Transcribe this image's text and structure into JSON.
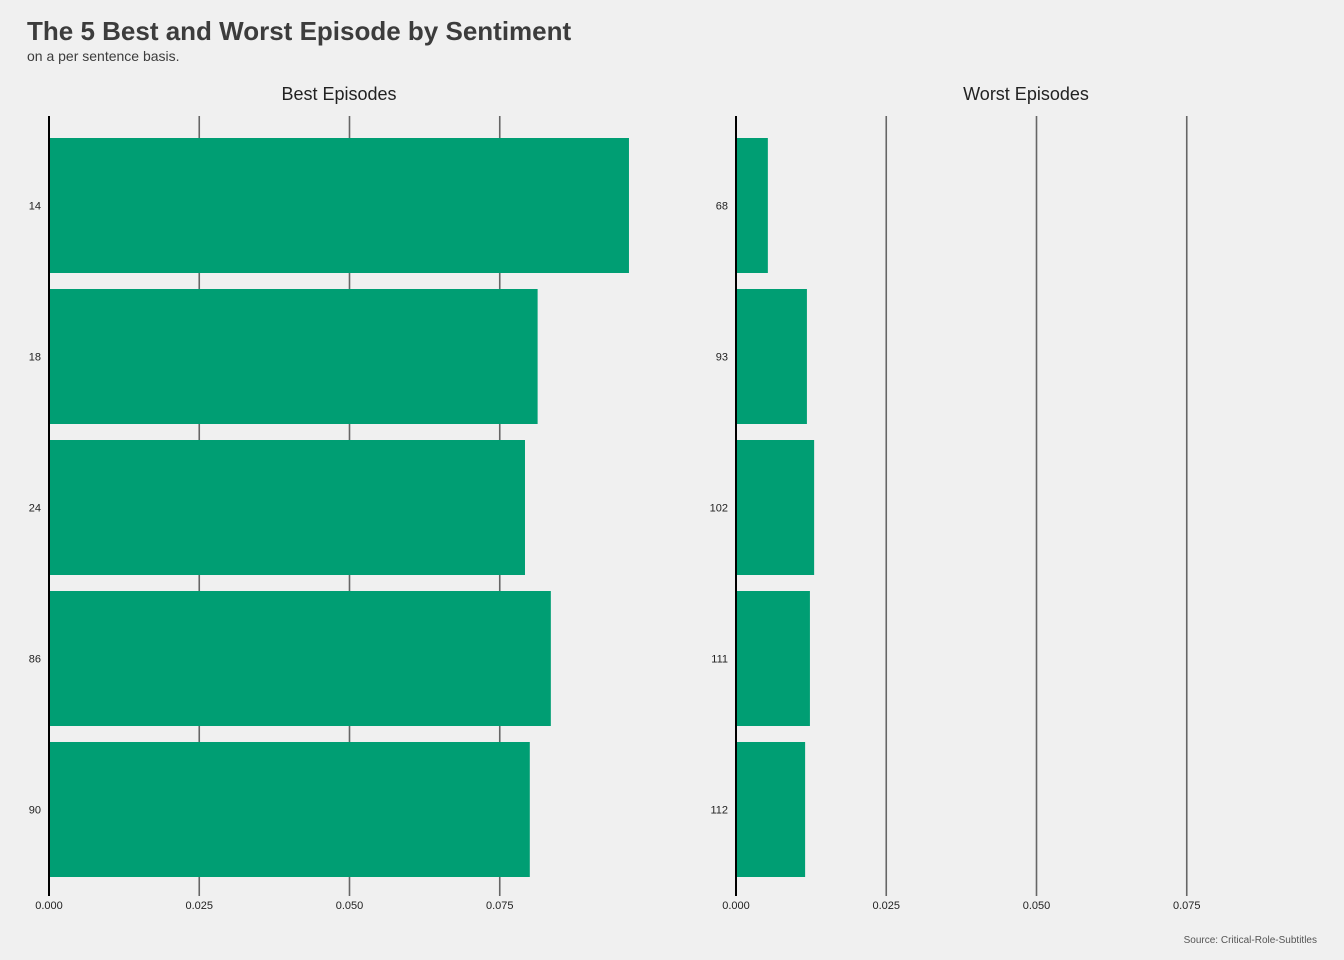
{
  "title": "The 5 Best and Worst Episode by Sentiment",
  "subtitle": "on a per sentence basis.",
  "caption": "Source: Critical-Role-Subtitles",
  "colors": {
    "background": "#f0f0f0",
    "bar": "#009e73",
    "gridline": "#666666",
    "axis": "#000000"
  },
  "chart_data": [
    {
      "type": "bar",
      "orientation": "horizontal",
      "title": "Best Episodes",
      "categories": [
        "14",
        "18",
        "24",
        "86",
        "90"
      ],
      "values": [
        0.0965,
        0.0813,
        0.0792,
        0.0835,
        0.08
      ],
      "xlim": [
        0,
        0.1
      ],
      "xticks": [
        "0.000",
        "0.025",
        "0.050",
        "0.075"
      ],
      "grid": "vertical-major"
    },
    {
      "type": "bar",
      "orientation": "horizontal",
      "title": "Worst Episodes",
      "categories": [
        "68",
        "93",
        "102",
        "111",
        "112"
      ],
      "values": [
        0.0053,
        0.0118,
        0.013,
        0.0123,
        0.0115
      ],
      "xlim": [
        0,
        0.1
      ],
      "xticks": [
        "0.000",
        "0.025",
        "0.050",
        "0.075"
      ],
      "grid": "vertical-major"
    }
  ]
}
